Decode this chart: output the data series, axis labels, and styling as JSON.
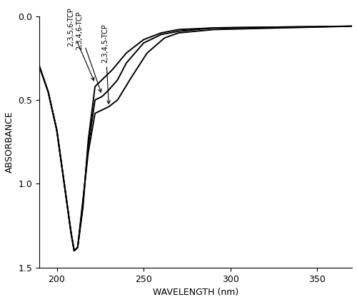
{
  "title": "",
  "xlabel": "WAVELENGTH (nm)",
  "ylabel": "ABSORBANCE",
  "xlim": [
    190,
    370
  ],
  "ylim": [
    0.0,
    1.5
  ],
  "xticks": [
    200,
    250,
    300,
    350
  ],
  "yticks": [
    0.0,
    0.5,
    1.0,
    1.5
  ],
  "background_color": "#ffffff",
  "line_color": "#000000",
  "label_256": "2,3,5,6-TCP",
  "label_346": "2,3,4,6-TCP",
  "label_345": "2,3,4,5-TCP",
  "figsize": [
    5.0,
    4.23
  ],
  "dpi": 100
}
